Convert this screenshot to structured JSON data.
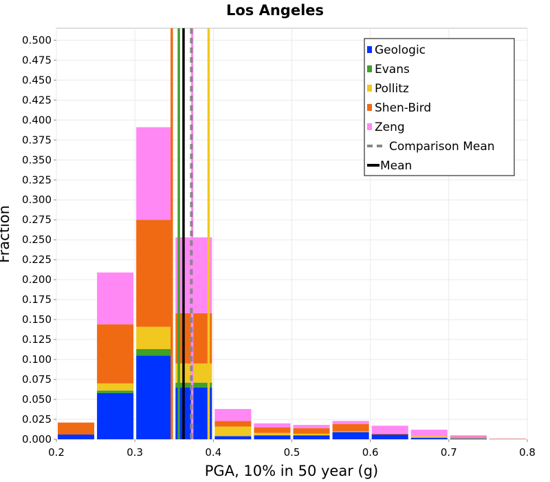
{
  "chart_data": {
    "type": "bar",
    "stacked": true,
    "title": "Los Angeles",
    "xlabel": "PGA, 10% in 50 year (g)",
    "ylabel": "Fraction",
    "xlim": [
      0.2,
      0.8
    ],
    "ylim": [
      0,
      0.515
    ],
    "x_ticks": [
      "0.2",
      "0.3",
      "0.4",
      "0.5",
      "0.6",
      "0.7",
      "0.8"
    ],
    "y_ticks": [
      "0.000",
      "0.025",
      "0.050",
      "0.075",
      "0.100",
      "0.125",
      "0.150",
      "0.175",
      "0.200",
      "0.225",
      "0.250",
      "0.275",
      "0.300",
      "0.325",
      "0.350",
      "0.375",
      "0.400",
      "0.425",
      "0.450",
      "0.475",
      "0.500"
    ],
    "grid": true,
    "legend_position": "top-right",
    "bin_width": 0.05,
    "bins": [
      0.225,
      0.275,
      0.325,
      0.375,
      0.425,
      0.475,
      0.525,
      0.575,
      0.625,
      0.675,
      0.725,
      0.775
    ],
    "series": [
      {
        "name": "Geologic",
        "color": "#0033ff",
        "values": [
          0.006,
          0.058,
          0.105,
          0.065,
          0.004,
          0.005,
          0.005,
          0.009,
          0.006,
          0.002,
          0.001,
          0.0002
        ]
      },
      {
        "name": "Evans",
        "color": "#3fa02a",
        "values": [
          0.0,
          0.003,
          0.008,
          0.006,
          0.0,
          0.0,
          0.0,
          0.0,
          0.0,
          0.0,
          0.0,
          0.0
        ]
      },
      {
        "name": "Pollitz",
        "color": "#f0c820",
        "values": [
          0.0,
          0.009,
          0.028,
          0.024,
          0.012,
          0.003,
          0.002,
          0.001,
          0.0,
          0.002,
          0.001,
          0.0003
        ]
      },
      {
        "name": "Shen-Bird",
        "color": "#f06a14",
        "values": [
          0.015,
          0.074,
          0.134,
          0.063,
          0.007,
          0.007,
          0.007,
          0.009,
          0.001,
          0.0,
          0.001,
          0.0003
        ]
      },
      {
        "name": "Zeng",
        "color": "#ff88f4",
        "values": [
          0.0,
          0.065,
          0.116,
          0.095,
          0.015,
          0.005,
          0.004,
          0.004,
          0.01,
          0.008,
          0.002,
          0.0002
        ]
      }
    ],
    "vertical_lines": [
      {
        "name": "Shen-Bird",
        "x": 0.347,
        "color": "#f06a14",
        "style": "solid"
      },
      {
        "name": "Evans",
        "x": 0.356,
        "color": "#3fa02a",
        "style": "solid"
      },
      {
        "name": "Zeng",
        "x": 0.373,
        "color": "#ff88f4",
        "style": "solid"
      },
      {
        "name": "Pollitz",
        "x": 0.394,
        "color": "#f0c820",
        "style": "solid"
      },
      {
        "name": "Comparison Mean",
        "x": 0.372,
        "color": "#888888",
        "style": "dashed"
      },
      {
        "name": "Mean",
        "x": 0.362,
        "color": "#000000",
        "style": "solid"
      }
    ],
    "legend": [
      {
        "label": "Geologic",
        "color": "#0033ff",
        "kind": "square"
      },
      {
        "label": "Evans",
        "color": "#3fa02a",
        "kind": "square"
      },
      {
        "label": "Pollitz",
        "color": "#f0c820",
        "kind": "square"
      },
      {
        "label": "Shen-Bird",
        "color": "#f06a14",
        "kind": "square"
      },
      {
        "label": "Zeng",
        "color": "#ff88f4",
        "kind": "square"
      },
      {
        "label": "Comparison Mean",
        "color": "#888888",
        "kind": "dashed"
      },
      {
        "label": "Mean",
        "color": "#000000",
        "kind": "line"
      }
    ]
  }
}
